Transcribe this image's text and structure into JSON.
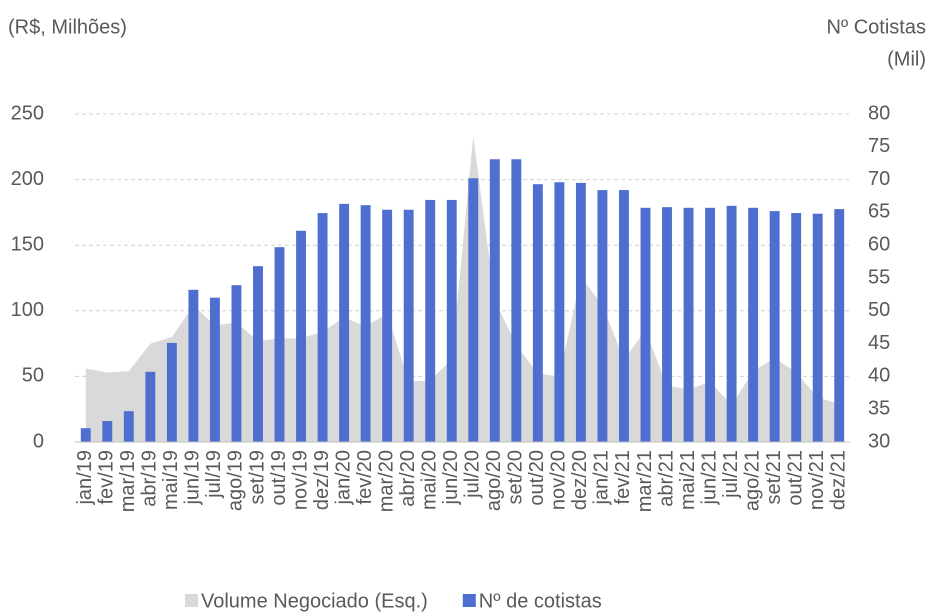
{
  "chart_data": {
    "type": "bar_area",
    "y_label": "(R$, Milhões)",
    "y2_label": [
      "Nº Cotistas",
      "(Mil)"
    ],
    "categories": [
      "jan/19",
      "fev/19",
      "mar/19",
      "abr/19",
      "mai/19",
      "jun/19",
      "jul/19",
      "ago/19",
      "set/19",
      "out/19",
      "nov/19",
      "dez/19",
      "jan/20",
      "fev/20",
      "mar/20",
      "abr/20",
      "mai/20",
      "jun/20",
      "jul/20",
      "ago/20",
      "set/20",
      "out/20",
      "nov/20",
      "dez/20",
      "jan/21",
      "fev/21",
      "mar/21",
      "abr/21",
      "mai/21",
      "jun/21",
      "jul/21",
      "ago/21",
      "set/21",
      "out/21",
      "nov/21",
      "dez/21"
    ],
    "series": [
      {
        "name": "Volume Negociado (Esq.)",
        "color": "#d9d9d9",
        "kind": "area",
        "values": [
          56,
          53,
          54,
          75,
          80,
          104,
          89,
          91,
          77,
          79,
          79,
          84,
          95,
          88,
          98,
          46,
          47,
          63,
          233,
          108,
          74,
          52,
          50,
          126,
          104,
          63,
          85,
          43,
          40,
          46,
          28,
          54,
          64,
          53,
          34,
          29
        ]
      },
      {
        "name": "Nº de cotistas",
        "color": "#4e6fcf",
        "kind": "bar",
        "axis": "y2",
        "values": [
          32.1,
          33.2,
          34.7,
          40.7,
          45.1,
          53.2,
          52.0,
          53.9,
          56.8,
          59.7,
          62.2,
          64.9,
          66.3,
          66.1,
          65.4,
          65.4,
          66.9,
          66.9,
          70.2,
          73.1,
          73.1,
          69.3,
          69.6,
          69.5,
          68.4,
          68.4,
          65.7,
          65.8,
          65.7,
          65.7,
          66.0,
          65.7,
          65.2,
          64.9,
          64.8,
          65.5
        ]
      }
    ],
    "ylim": [
      0,
      250
    ],
    "yticks": [
      0,
      50,
      100,
      150,
      200,
      250
    ],
    "y2lim": [
      30,
      80
    ],
    "y2ticks": [
      30,
      35,
      40,
      45,
      50,
      55,
      60,
      65,
      70,
      75,
      80
    ],
    "grid": true,
    "legend": "bottom"
  }
}
